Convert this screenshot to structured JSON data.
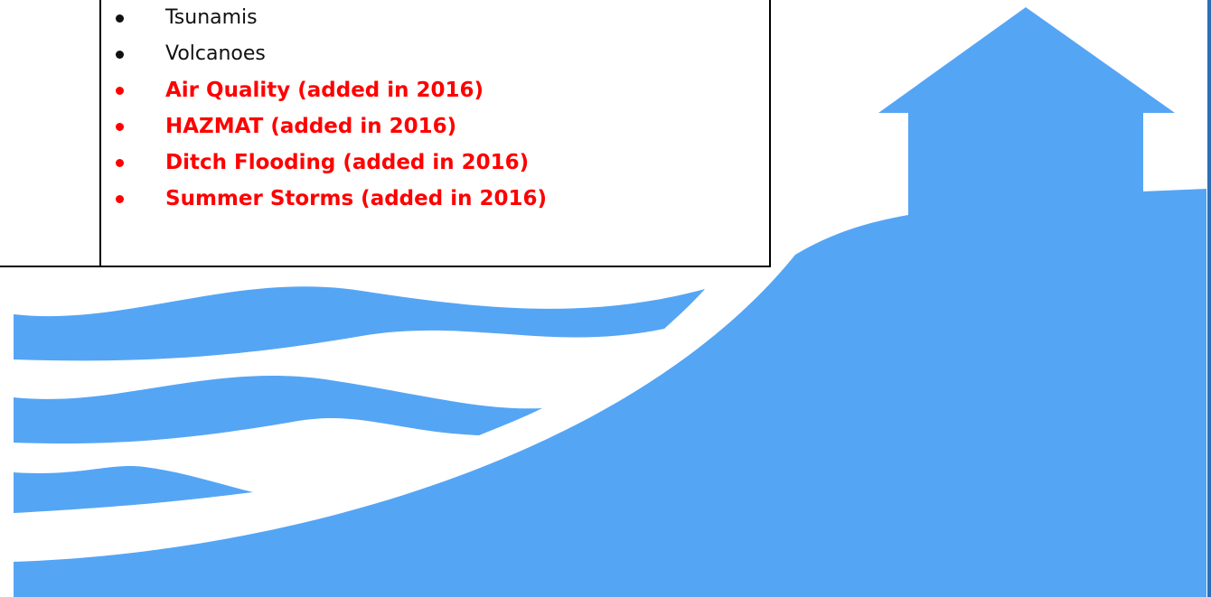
{
  "list": {
    "items": [
      {
        "text": "Tsunamis",
        "color": "#111111",
        "bold": false
      },
      {
        "text": "Volcanoes",
        "color": "#111111",
        "bold": false
      },
      {
        "text": "Air Quality (added in 2016)",
        "color": "#ff0000",
        "bold": true
      },
      {
        "text": "HAZMAT (added in 2016)",
        "color": "#ff0000",
        "bold": true
      },
      {
        "text": "Ditch Flooding (added in 2016)",
        "color": "#ff0000",
        "bold": true
      },
      {
        "text": "Summer Storms (added in 2016)",
        "color": "#ff0000",
        "bold": true
      }
    ]
  }
}
